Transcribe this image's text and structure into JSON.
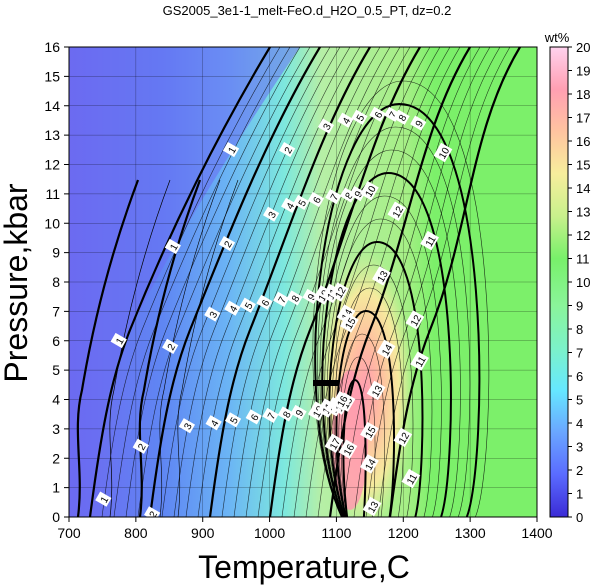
{
  "chart_data": {
    "type": "heatmap",
    "title": "GS2005_3e1-1_melt-FeO.d_H2O_0.5_PT, dz=0.2",
    "xlabel": "Temperature,C",
    "ylabel": "Pressure,kbar",
    "xlim": [
      700,
      1400
    ],
    "ylim": [
      0,
      16
    ],
    "x_ticks": [
      "700",
      "800",
      "900",
      "1000",
      "1100",
      "1200",
      "1300",
      "1400"
    ],
    "y_ticks": [
      "0",
      "1",
      "2",
      "3",
      "4",
      "5",
      "6",
      "7",
      "8",
      "9",
      "10",
      "11",
      "12",
      "13",
      "14",
      "15",
      "16"
    ],
    "grid": true,
    "colorbar": {
      "label": "wt%",
      "range": [
        0,
        20
      ],
      "ticks": [
        "0",
        "1",
        "2",
        "3",
        "4",
        "5",
        "6",
        "7",
        "8",
        "9",
        "10",
        "11",
        "12",
        "13",
        "14",
        "15",
        "16",
        "17",
        "18",
        "19",
        "20"
      ],
      "colors": [
        "#3b2bd6",
        "#5a6bff",
        "#6aa6ff",
        "#66e8ff",
        "#7cf2c8",
        "#8af59a",
        "#78f06a",
        "#c8f08c",
        "#f7ee9c",
        "#ffc4a0",
        "#ff9fb2",
        "#ffd2ee"
      ]
    },
    "contour_labels": [
      {
        "text": "1",
        "x": 752,
        "y": 0.6
      },
      {
        "text": "1",
        "x": 775,
        "y": 6.0
      },
      {
        "text": "1",
        "x": 856,
        "y": 9.2
      },
      {
        "text": "1",
        "x": 943,
        "y": 12.5
      },
      {
        "text": "2",
        "x": 825,
        "y": 0.1
      },
      {
        "text": "2",
        "x": 808,
        "y": 2.4
      },
      {
        "text": "2",
        "x": 852,
        "y": 5.8
      },
      {
        "text": "2",
        "x": 937,
        "y": 9.3
      },
      {
        "text": "2",
        "x": 1027,
        "y": 12.5
      },
      {
        "text": "3",
        "x": 877,
        "y": 3.1
      },
      {
        "text": "3",
        "x": 915,
        "y": 6.9
      },
      {
        "text": "3",
        "x": 1003,
        "y": 10.3
      },
      {
        "text": "3",
        "x": 1085,
        "y": 13.3
      },
      {
        "text": "4",
        "x": 917,
        "y": 3.2
      },
      {
        "text": "4",
        "x": 945,
        "y": 7.1
      },
      {
        "text": "4",
        "x": 1030,
        "y": 10.6
      },
      {
        "text": "4",
        "x": 1114,
        "y": 13.5
      },
      {
        "text": "5",
        "x": 946,
        "y": 3.3
      },
      {
        "text": "5",
        "x": 968,
        "y": 7.2
      },
      {
        "text": "5",
        "x": 1048,
        "y": 10.7
      },
      {
        "text": "5",
        "x": 1135,
        "y": 13.6
      },
      {
        "text": "6",
        "x": 977,
        "y": 3.4
      },
      {
        "text": "6",
        "x": 993,
        "y": 7.3
      },
      {
        "text": "6",
        "x": 1070,
        "y": 10.8
      },
      {
        "text": "6",
        "x": 1162,
        "y": 13.7
      },
      {
        "text": "7",
        "x": 1002,
        "y": 3.45
      },
      {
        "text": "7",
        "x": 1018,
        "y": 7.4
      },
      {
        "text": "7",
        "x": 1096,
        "y": 10.9
      },
      {
        "text": "7",
        "x": 1184,
        "y": 13.7
      },
      {
        "text": "8",
        "x": 1025,
        "y": 3.5
      },
      {
        "text": "8",
        "x": 1038,
        "y": 7.45
      },
      {
        "text": "8",
        "x": 1118,
        "y": 10.95
      },
      {
        "text": "8",
        "x": 1198,
        "y": 13.6
      },
      {
        "text": "9",
        "x": 1044,
        "y": 3.55
      },
      {
        "text": "9",
        "x": 1062,
        "y": 7.5
      },
      {
        "text": "9",
        "x": 1132,
        "y": 11.0
      },
      {
        "text": "9",
        "x": 1223,
        "y": 13.4
      },
      {
        "text": "10",
        "x": 1072,
        "y": 3.6
      },
      {
        "text": "10",
        "x": 1080,
        "y": 7.55
      },
      {
        "text": "10",
        "x": 1150,
        "y": 11.1
      },
      {
        "text": "10",
        "x": 1260,
        "y": 12.4
      },
      {
        "text": "11",
        "x": 1086,
        "y": 3.7
      },
      {
        "text": "11",
        "x": 1093,
        "y": 7.6
      },
      {
        "text": "11",
        "x": 1240,
        "y": 9.4
      },
      {
        "text": "11",
        "x": 1225,
        "y": 5.3
      },
      {
        "text": "11",
        "x": 1212,
        "y": 1.3
      },
      {
        "text": "12",
        "x": 1098,
        "y": 3.75
      },
      {
        "text": "12",
        "x": 1105,
        "y": 7.65
      },
      {
        "text": "12",
        "x": 1191,
        "y": 10.4
      },
      {
        "text": "12",
        "x": 1218,
        "y": 6.7
      },
      {
        "text": "12",
        "x": 1200,
        "y": 2.7
      },
      {
        "text": "13",
        "x": 1106,
        "y": 3.8
      },
      {
        "text": "13",
        "x": 1168,
        "y": 8.2
      },
      {
        "text": "13",
        "x": 1160,
        "y": 4.3
      },
      {
        "text": "13",
        "x": 1154,
        "y": 0.35
      },
      {
        "text": "14",
        "x": 1115,
        "y": 6.9
      },
      {
        "text": "14",
        "x": 1175,
        "y": 5.7
      },
      {
        "text": "14",
        "x": 1150,
        "y": 1.8
      },
      {
        "text": "15",
        "x": 1120,
        "y": 6.6
      },
      {
        "text": "15",
        "x": 1115,
        "y": 3.9
      },
      {
        "text": "15",
        "x": 1150,
        "y": 2.9
      },
      {
        "text": "16",
        "x": 1108,
        "y": 3.95
      },
      {
        "text": "16",
        "x": 1118,
        "y": 2.3
      },
      {
        "text": "17",
        "x": 1097,
        "y": 2.5
      }
    ]
  }
}
